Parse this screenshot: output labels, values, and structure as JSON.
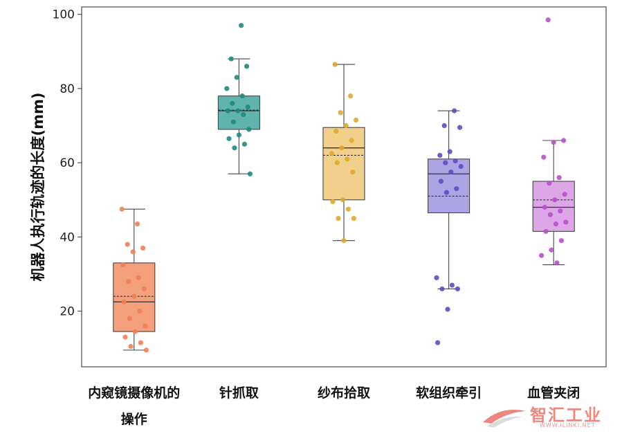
{
  "chart_data": {
    "type": "box",
    "xlabel": "",
    "ylabel": "机器人执行轨迹的长度(mm)",
    "ylim": [
      5,
      102
    ],
    "yticks": [
      20,
      40,
      60,
      80,
      100
    ],
    "grid": false,
    "categories": [
      {
        "label_lines": [
          "内窥镜摄像机的",
          "操作"
        ],
        "color": "#f4a07c",
        "point_color": "#ee7f55",
        "min": 9.5,
        "q1": 14.5,
        "median": 22.5,
        "mean": 24,
        "q3": 33,
        "max": 47.5,
        "points": [
          47.5,
          43.5,
          38,
          37,
          36,
          32.5,
          29,
          28,
          26,
          24,
          22.5,
          20,
          18,
          16,
          14.5,
          13,
          11.5,
          10.5,
          9.5
        ]
      },
      {
        "label_lines": [
          "针抓取"
        ],
        "color": "#5fb5ae",
        "point_color": "#1f8a80",
        "min": 57,
        "q1": 69,
        "median": 74,
        "mean": 74.2,
        "q3": 78,
        "max": 88,
        "points": [
          97,
          88,
          86,
          83,
          80,
          78,
          76,
          75,
          74,
          74,
          73,
          71,
          69,
          67.5,
          66.5,
          65,
          64,
          57
        ]
      },
      {
        "label_lines": [
          "纱布拾取"
        ],
        "color": "#f1d08b",
        "point_color": "#dfa92a",
        "min": 39,
        "q1": 50,
        "median": 64,
        "mean": 62,
        "q3": 69.5,
        "max": 86.5,
        "points": [
          86.5,
          78,
          73.5,
          71.5,
          70,
          68.5,
          66,
          64,
          62.5,
          61,
          60,
          57.5,
          50,
          49.5,
          47.5,
          45,
          45,
          39
        ]
      },
      {
        "label_lines": [
          "软组织牵引"
        ],
        "color": "#ada4e4",
        "point_color": "#5c4ec2",
        "min": 26,
        "q1": 46.5,
        "median": 57,
        "mean": 51,
        "q3": 61,
        "max": 74,
        "points": [
          74,
          70,
          69.5,
          63,
          62,
          60.5,
          60,
          59,
          57.5,
          55,
          53,
          52,
          29,
          27,
          26,
          26,
          20.5,
          11.5
        ]
      },
      {
        "label_lines": [
          "血管夹闭"
        ],
        "color": "#dda6e6",
        "point_color": "#b94fcc",
        "min": 32.5,
        "q1": 41.5,
        "median": 48,
        "mean": 50,
        "q3": 55,
        "max": 66,
        "points": [
          98.5,
          66,
          65.5,
          61.5,
          56,
          54.5,
          51.5,
          50,
          48,
          47,
          46,
          44,
          43.5,
          41.5,
          39,
          36.5,
          35,
          33
        ]
      }
    ]
  },
  "watermark": {
    "main": "智汇工业",
    "sub": "WWW.ILINKI.NET"
  }
}
